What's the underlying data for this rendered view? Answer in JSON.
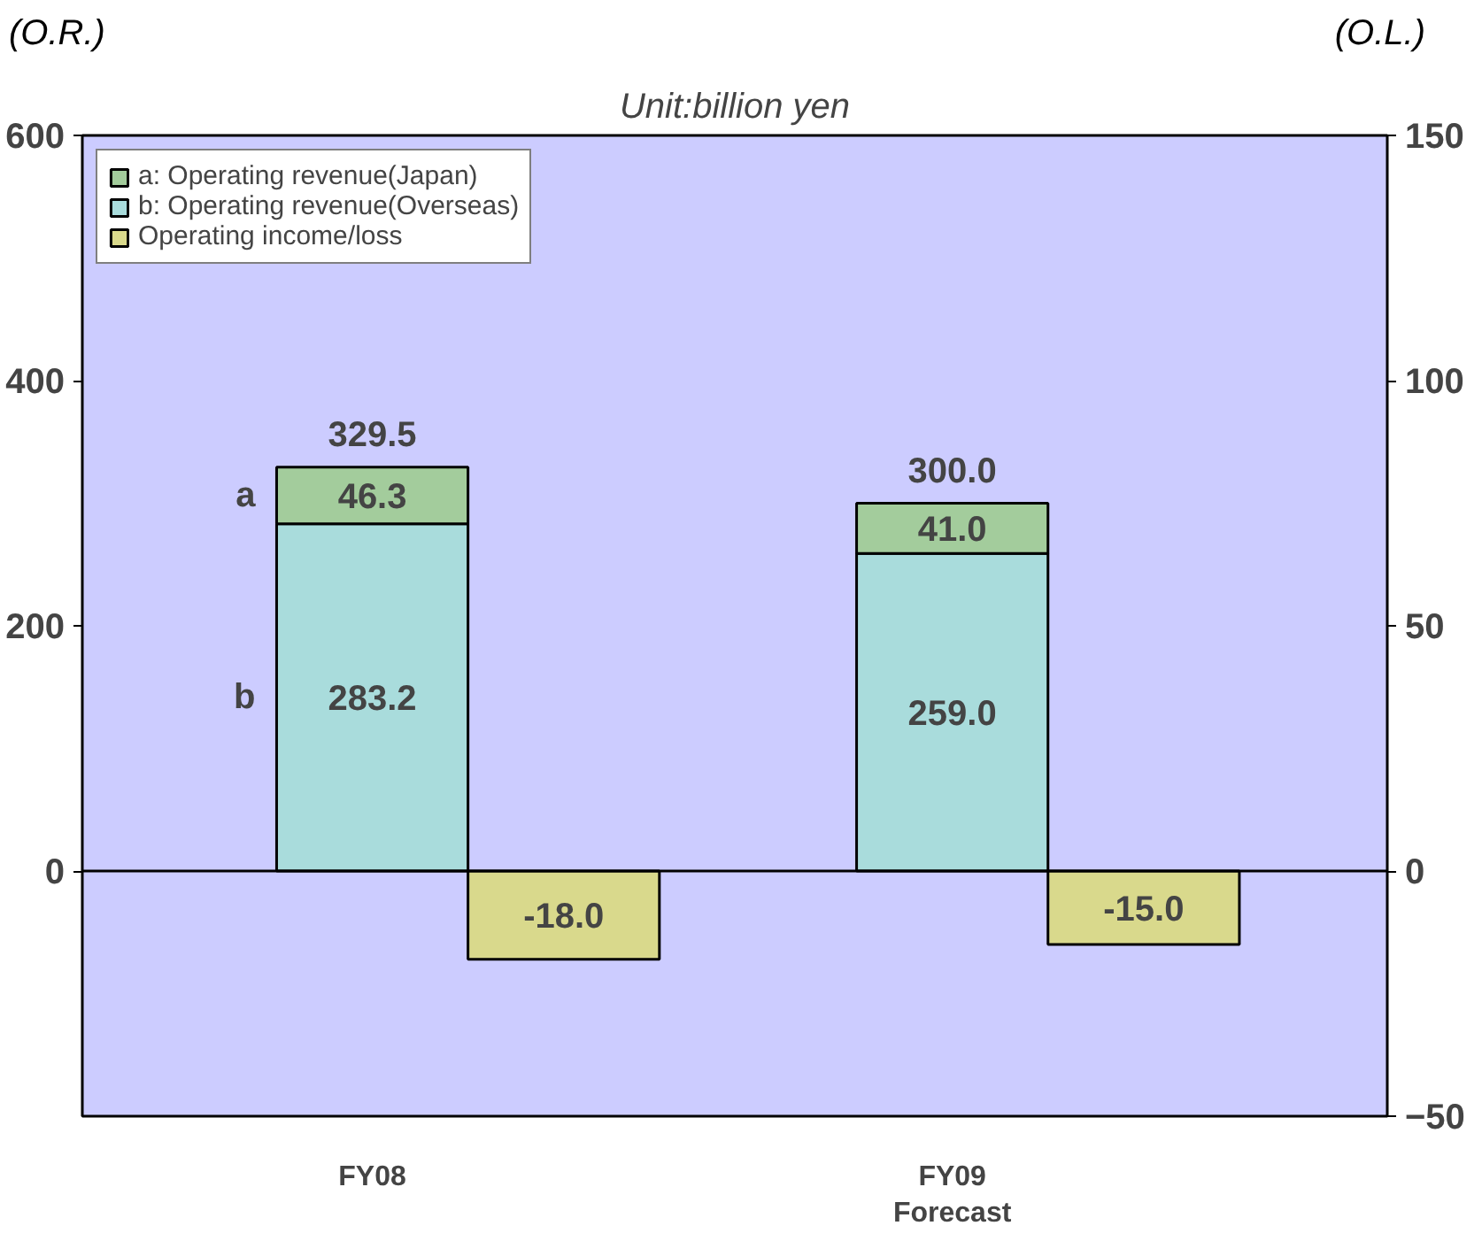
{
  "chart_data": {
    "type": "bar",
    "title": "Unit:billion yen",
    "ylabel": "(O.R.)",
    "y2label": "(O.L.)",
    "categories": [
      "FY08",
      "FY09\nForecast"
    ],
    "series": [
      {
        "name": "b: Operating revenue(Overseas)",
        "color": "#a9dcdc",
        "values": [
          283.2,
          259.0
        ],
        "value_labels": [
          "283.2",
          "259.0"
        ]
      },
      {
        "name": "a: Operating revenue(Japan)",
        "color": "#a3cc9c",
        "values": [
          46.3,
          41.0
        ],
        "value_labels": [
          "46.3",
          "41.0"
        ]
      },
      {
        "name": "Operating income/loss",
        "color": "#d9d98c",
        "values": [
          -18.0,
          -15.0
        ],
        "value_labels": [
          "-18.0",
          "-15.0"
        ],
        "axis": "y2"
      }
    ],
    "stacked": true,
    "totals": [
      "329.5",
      "300.0"
    ],
    "annotations": [
      "a",
      "b"
    ],
    "ylim": [
      -200,
      600
    ],
    "yticks": [
      0,
      200,
      400,
      600
    ],
    "y2lim": [
      -50,
      150
    ],
    "y2ticks": [
      -50,
      0,
      50,
      100,
      150
    ],
    "legend": "top left"
  }
}
